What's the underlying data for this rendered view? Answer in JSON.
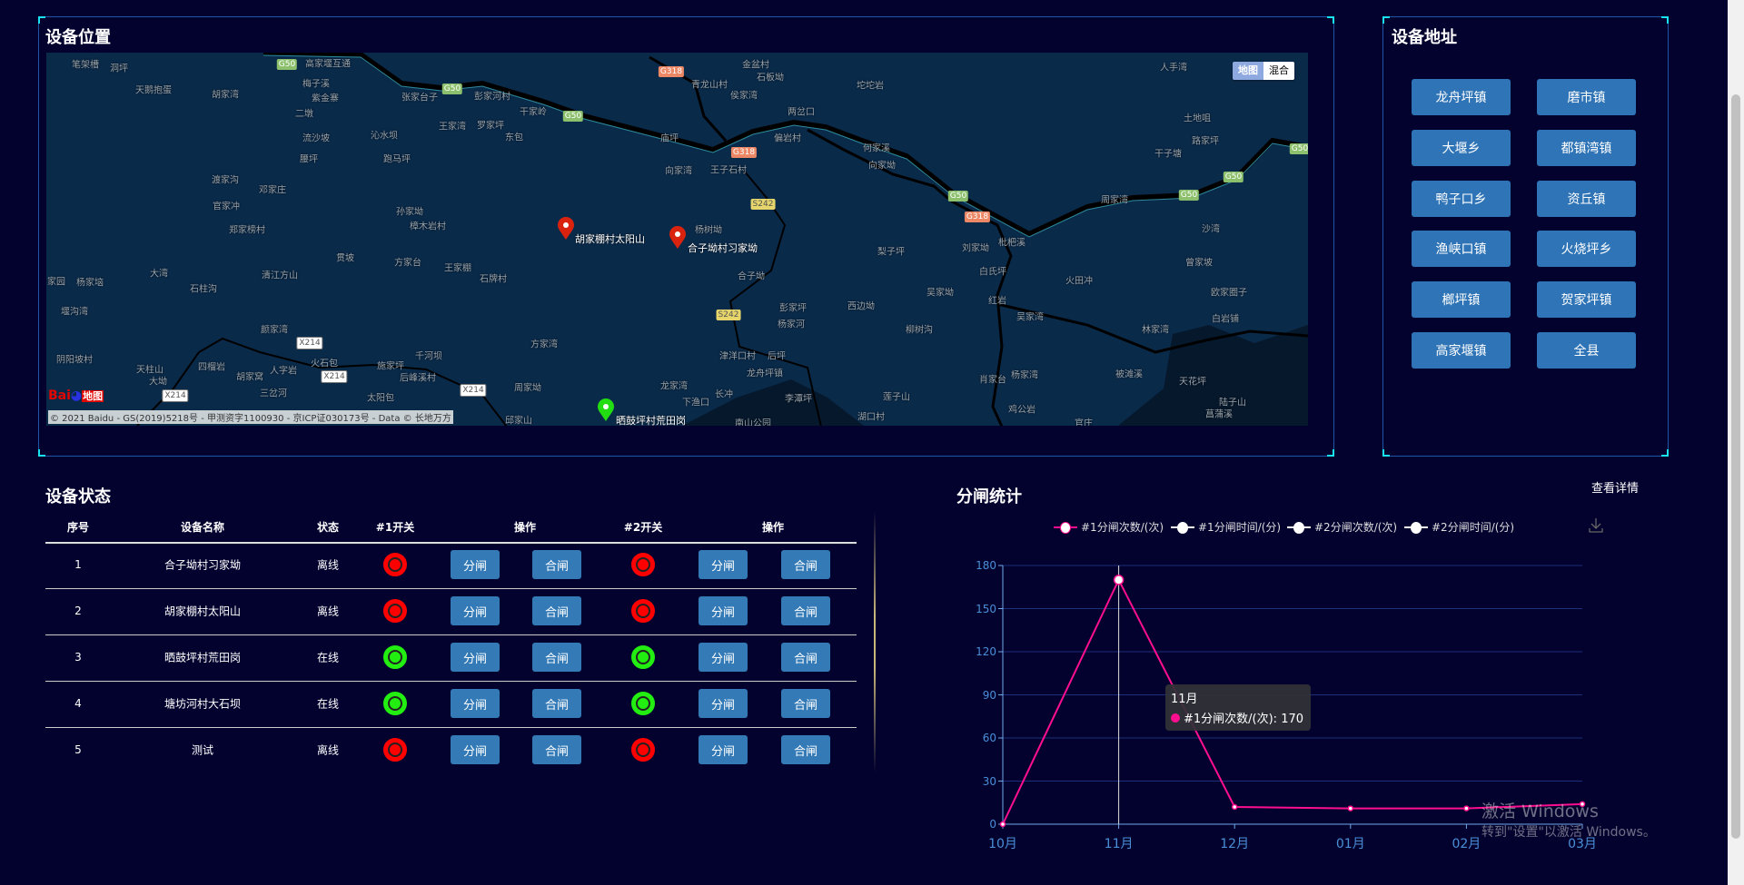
{
  "map_panel": {
    "title": "设备位置",
    "toggle": [
      "地图",
      "混合"
    ],
    "logo_text": "Bai地图",
    "copyright": "© 2021 Baidu - GS(2019)5218号 - 甲测资字1100930 - 京ICP证030173号 - Data © 长地万方",
    "places": [
      "笔架槽",
      "洞坪",
      "天鹅抱蛋",
      "胡家湾",
      "高家堰互通",
      "梅子溪",
      "紫金寨",
      "二墩",
      "张家台子",
      "彭家河村",
      "干家岭",
      "王家湾",
      "罗家坪",
      "东包",
      "流沙坡",
      "沁水坝",
      "腰坪",
      "跑马坪",
      "渡家沟",
      "邓家庄",
      "官家冲",
      "孙家坳",
      "樟木岩村",
      "郑家榜村",
      "贯坡",
      "方家台",
      "王家棚",
      "石牌村",
      "大湾",
      "清江方山",
      "石柱沟",
      "杨家垴",
      "家园",
      "堰沟湾",
      "颜家湾",
      "方家湾",
      "千河坝",
      "阴阳坡村",
      "天柱山",
      "四榴岩",
      "人字岩",
      "火石包",
      "施家坪",
      "后峰溪村",
      "胡家窝",
      "大坳",
      "三岔河",
      "太阳包",
      "周家坳",
      "邱家山",
      "金盆村",
      "石板坳",
      "青龙山村",
      "侯家湾",
      "坨坨岩",
      "两岔口",
      "偏岩村",
      "庙坪",
      "何家溪",
      "向家坳",
      "向家湾",
      "王子石村",
      "杨树坳",
      "梨子坪",
      "刘家坳",
      "枇杷溪",
      "周家湾",
      "土地咀",
      "路家坪",
      "干子塘",
      "人手湾",
      "沙湾",
      "曾家坡",
      "欧家圈子",
      "白岩铺",
      "林家湾",
      "火田冲",
      "白氏坪",
      "红岩",
      "吴家湾",
      "吴家坳",
      "西边坳",
      "柳树沟",
      "彭家坪",
      "杨家河",
      "合子坳",
      "津洋口村",
      "后坪",
      "龙舟坪镇",
      "龙家湾",
      "长冲",
      "下渔口",
      "李潭坪",
      "莲子山",
      "肖家台",
      "杨家湾",
      "鸡公岩",
      "湖口村",
      "被滩溪",
      "天花坪",
      "陆子山",
      "菖蒲溪",
      "官庄",
      "南山公园"
    ],
    "shields": [
      "G50",
      "G50",
      "G50",
      "G318",
      "G318",
      "S242",
      "G50",
      "G318",
      "G50",
      "G50",
      "G50",
      "S242",
      "X214",
      "X214",
      "X214",
      "X214"
    ],
    "markers": [
      {
        "label": "胡家棚村太阳山",
        "color": "#d9230f"
      },
      {
        "label": "合子坳村习家坳",
        "color": "#d9230f"
      },
      {
        "label": "晒鼓坪村荒田岗",
        "color": "#22dd11"
      }
    ]
  },
  "address_panel": {
    "title": "设备地址",
    "buttons": [
      "龙舟坪镇",
      "磨市镇",
      "大堰乡",
      "都镇湾镇",
      "鸭子口乡",
      "资丘镇",
      "渔峡口镇",
      "火烧坪乡",
      "榔坪镇",
      "贺家坪镇",
      "高家堰镇",
      "全县"
    ]
  },
  "status_panel": {
    "title": "设备状态",
    "headers": [
      "序号",
      "设备名称",
      "状态",
      "#1开关",
      "操作",
      "#2开关",
      "操作"
    ],
    "open_label": "分闸",
    "close_label": "合闸",
    "rows": [
      {
        "id": "1",
        "name": "合子坳村习家坳",
        "status": "离线",
        "sw1": "red",
        "sw2": "red"
      },
      {
        "id": "2",
        "name": "胡家棚村太阳山",
        "status": "离线",
        "sw1": "red",
        "sw2": "red"
      },
      {
        "id": "3",
        "name": "晒鼓坪村荒田岗",
        "status": "在线",
        "sw1": "green",
        "sw2": "green"
      },
      {
        "id": "4",
        "name": "塘坊河村大石坝",
        "status": "在线",
        "sw1": "green",
        "sw2": "green"
      },
      {
        "id": "5",
        "name": "测试",
        "status": "离线",
        "sw1": "red",
        "sw2": "red"
      }
    ],
    "colors": {
      "red": "#ff0000",
      "green": "#22ee11"
    }
  },
  "stats_panel": {
    "title": "分闸统计",
    "detail_link": "查看详情",
    "download_icon": "download-icon"
  },
  "chart_data": {
    "type": "line",
    "categories": [
      "10月",
      "11月",
      "12月",
      "01月",
      "02月",
      "03月"
    ],
    "series": [
      {
        "name": "#1分闸次数/(次)",
        "color": "#ff0f8f",
        "values": [
          0,
          170,
          12,
          11,
          11,
          14
        ]
      },
      {
        "name": "#1分闸时间/(分)",
        "color": "#ffffff"
      },
      {
        "name": "#2分闸次数/(次)",
        "color": "#ffffff"
      },
      {
        "name": "#2分闸时间/(分)",
        "color": "#ffffff"
      }
    ],
    "ylim": [
      0,
      180
    ],
    "yticks": [
      0,
      30,
      60,
      90,
      120,
      150,
      180
    ],
    "grid": true,
    "legend": "top",
    "tooltip": {
      "title": "11月",
      "text": "#1分闸次数/(次): 170"
    }
  },
  "watermark": {
    "line1": "激活 Windows",
    "line2": "转到\"设置\"以激活 Windows。"
  }
}
